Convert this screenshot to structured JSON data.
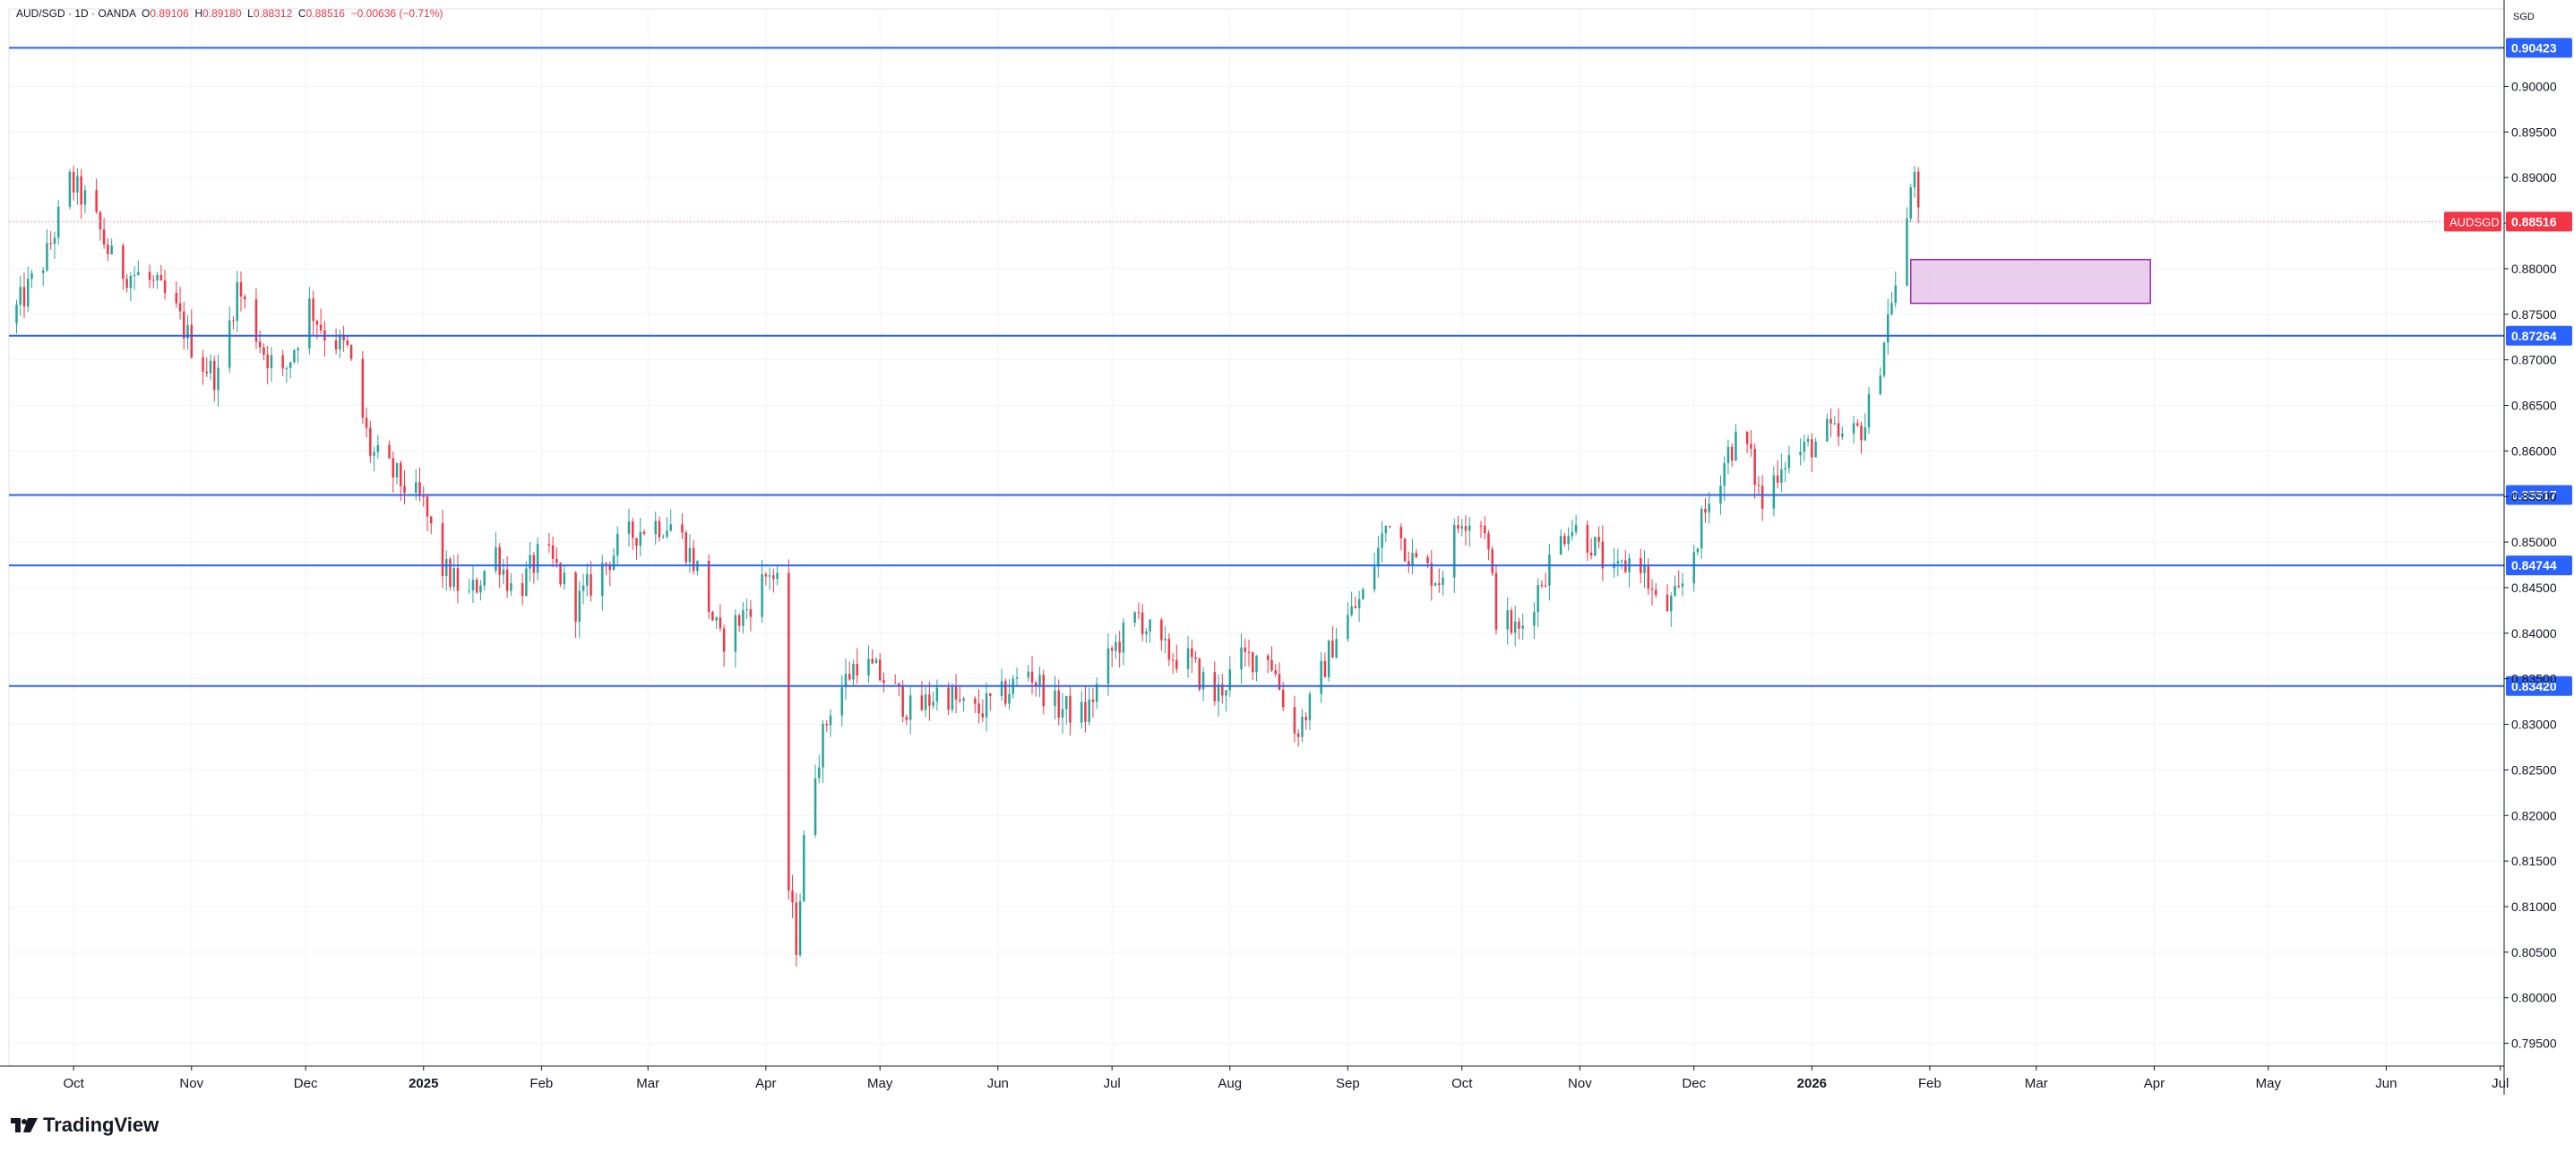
{
  "header": {
    "symbol_line": "AUD/SGD · 1D · OANDA",
    "o_label": "O",
    "o_value": "0.89106",
    "h_label": "H",
    "h_value": "0.89180",
    "l_label": "L",
    "l_value": "0.88312",
    "c_label": "C",
    "c_value": "0.88516",
    "change": "−0.00636 (−0.71%)"
  },
  "brand": {
    "name": "TradingView"
  },
  "colors": {
    "up": "#26a69a",
    "down": "#f23645",
    "level": "#2962ff",
    "zone_fill": "#e1bee7",
    "zone_stroke": "#9c27b0"
  },
  "chart_data": {
    "type": "candlestick",
    "currency": "SGD",
    "symbol_tag": "AUDSGD",
    "last_price": "0.88516",
    "y_range": [
      0.7925,
      0.9085
    ],
    "y_ticks": [
      "0.79500",
      "0.80000",
      "0.80500",
      "0.81000",
      "0.81500",
      "0.82000",
      "0.82500",
      "0.83000",
      "0.83500",
      "0.84000",
      "0.84500",
      "0.85000",
      "0.85500",
      "0.86000",
      "0.86500",
      "0.87000",
      "0.87500",
      "0.88000",
      "0.88500",
      "0.89000",
      "0.89500",
      "0.90000"
    ],
    "horizontal_levels": [
      "0.90423",
      "0.87264",
      "0.85517",
      "0.84744",
      "0.83420"
    ],
    "zone": {
      "from": "2026-01-27",
      "to": "2026-03-31",
      "top": 0.881,
      "bottom": 0.8762
    },
    "x_range": [
      "2024-09-14",
      "2026-07-02"
    ],
    "x_ticks": [
      {
        "label": "Oct",
        "date": "2024-10-01",
        "bold": false
      },
      {
        "label": "Nov",
        "date": "2024-11-01",
        "bold": false
      },
      {
        "label": "Dec",
        "date": "2024-12-01",
        "bold": false
      },
      {
        "label": "2025",
        "date": "2025-01-01",
        "bold": true
      },
      {
        "label": "Feb",
        "date": "2025-02-01",
        "bold": false
      },
      {
        "label": "Mar",
        "date": "2025-03-01",
        "bold": false
      },
      {
        "label": "Apr",
        "date": "2025-04-01",
        "bold": false
      },
      {
        "label": "May",
        "date": "2025-05-01",
        "bold": false
      },
      {
        "label": "Jun",
        "date": "2025-06-01",
        "bold": false
      },
      {
        "label": "Jul",
        "date": "2025-07-01",
        "bold": false
      },
      {
        "label": "Aug",
        "date": "2025-08-01",
        "bold": false
      },
      {
        "label": "Sep",
        "date": "2025-09-01",
        "bold": false
      },
      {
        "label": "Oct",
        "date": "2025-10-01",
        "bold": false
      },
      {
        "label": "Nov",
        "date": "2025-11-01",
        "bold": false
      },
      {
        "label": "Dec",
        "date": "2025-12-01",
        "bold": false
      },
      {
        "label": "2026",
        "date": "2026-01-01",
        "bold": true
      },
      {
        "label": "Feb",
        "date": "2026-02-01",
        "bold": false
      },
      {
        "label": "Mar",
        "date": "2026-03-01",
        "bold": false
      },
      {
        "label": "Apr",
        "date": "2026-04-01",
        "bold": false
      },
      {
        "label": "May",
        "date": "2026-05-01",
        "bold": false
      },
      {
        "label": "Jun",
        "date": "2026-06-01",
        "bold": false
      },
      {
        "label": "Jul",
        "date": "2026-07-01",
        "bold": false
      }
    ],
    "closes": [
      [
        "2024-09-14",
        0.874
      ],
      [
        "2024-09-24",
        0.8815
      ],
      [
        "2024-09-30",
        0.8895
      ],
      [
        "2024-10-05",
        0.887
      ],
      [
        "2024-10-12",
        0.88
      ],
      [
        "2024-10-20",
        0.879
      ],
      [
        "2024-10-27",
        0.876
      ],
      [
        "2024-11-03",
        0.87
      ],
      [
        "2024-11-08",
        0.868
      ],
      [
        "2024-11-13",
        0.878
      ],
      [
        "2024-11-20",
        0.871
      ],
      [
        "2024-11-25",
        0.868
      ],
      [
        "2024-12-02",
        0.876
      ],
      [
        "2024-12-06",
        0.873
      ],
      [
        "2024-12-12",
        0.871
      ],
      [
        "2024-12-18",
        0.86
      ],
      [
        "2024-12-25",
        0.857
      ],
      [
        "2025-01-01",
        0.854
      ],
      [
        "2025-01-06",
        0.847
      ],
      [
        "2025-01-13",
        0.844
      ],
      [
        "2025-01-20",
        0.849
      ],
      [
        "2025-01-25",
        0.844
      ],
      [
        "2025-02-01",
        0.849
      ],
      [
        "2025-02-05",
        0.847
      ],
      [
        "2025-02-10",
        0.843
      ],
      [
        "2025-02-15",
        0.846
      ],
      [
        "2025-02-22",
        0.85
      ],
      [
        "2025-03-01",
        0.852
      ],
      [
        "2025-03-08",
        0.852
      ],
      [
        "2025-03-14",
        0.847
      ],
      [
        "2025-03-20",
        0.839
      ],
      [
        "2025-03-26",
        0.842
      ],
      [
        "2025-04-02",
        0.847
      ],
      [
        "2025-04-05",
        0.844
      ],
      [
        "2025-04-07",
        0.812
      ],
      [
        "2025-04-09",
        0.806
      ],
      [
        "2025-04-12",
        0.822
      ],
      [
        "2025-04-18",
        0.832
      ],
      [
        "2025-04-25",
        0.837
      ],
      [
        "2025-05-02",
        0.835
      ],
      [
        "2025-05-10",
        0.831
      ],
      [
        "2025-05-17",
        0.834
      ],
      [
        "2025-05-25",
        0.831
      ],
      [
        "2025-06-02",
        0.833
      ],
      [
        "2025-06-09",
        0.836
      ],
      [
        "2025-06-16",
        0.832
      ],
      [
        "2025-06-24",
        0.831
      ],
      [
        "2025-07-01",
        0.838
      ],
      [
        "2025-07-08",
        0.842
      ],
      [
        "2025-07-14",
        0.838
      ],
      [
        "2025-07-21",
        0.837
      ],
      [
        "2025-07-28",
        0.833
      ],
      [
        "2025-08-04",
        0.837
      ],
      [
        "2025-08-11",
        0.838
      ],
      [
        "2025-08-18",
        0.829
      ],
      [
        "2025-08-22",
        0.832
      ],
      [
        "2025-08-29",
        0.84
      ],
      [
        "2025-09-05",
        0.844
      ],
      [
        "2025-09-12",
        0.853
      ],
      [
        "2025-09-18",
        0.848
      ],
      [
        "2025-09-25",
        0.846
      ],
      [
        "2025-10-01",
        0.853
      ],
      [
        "2025-10-07",
        0.852
      ],
      [
        "2025-10-10",
        0.842
      ],
      [
        "2025-10-16",
        0.84
      ],
      [
        "2025-10-22",
        0.846
      ],
      [
        "2025-10-29",
        0.852
      ],
      [
        "2025-11-04",
        0.85
      ],
      [
        "2025-11-10",
        0.846
      ],
      [
        "2025-11-16",
        0.849
      ],
      [
        "2025-11-22",
        0.842
      ],
      [
        "2025-11-27",
        0.844
      ],
      [
        "2025-12-03",
        0.852
      ],
      [
        "2025-12-10",
        0.86
      ],
      [
        "2025-12-14",
        0.862
      ],
      [
        "2025-12-19",
        0.854
      ],
      [
        "2025-12-24",
        0.859
      ],
      [
        "2025-12-30",
        0.86
      ],
      [
        "2026-01-05",
        0.862
      ],
      [
        "2026-01-10",
        0.861
      ],
      [
        "2026-01-15",
        0.863
      ],
      [
        "2026-01-19",
        0.87
      ],
      [
        "2026-01-22",
        0.877
      ],
      [
        "2026-01-25",
        0.88
      ],
      [
        "2026-01-27",
        0.889
      ],
      [
        "2026-01-28",
        0.8916
      ],
      [
        "2026-01-29",
        0.8852
      ]
    ]
  }
}
